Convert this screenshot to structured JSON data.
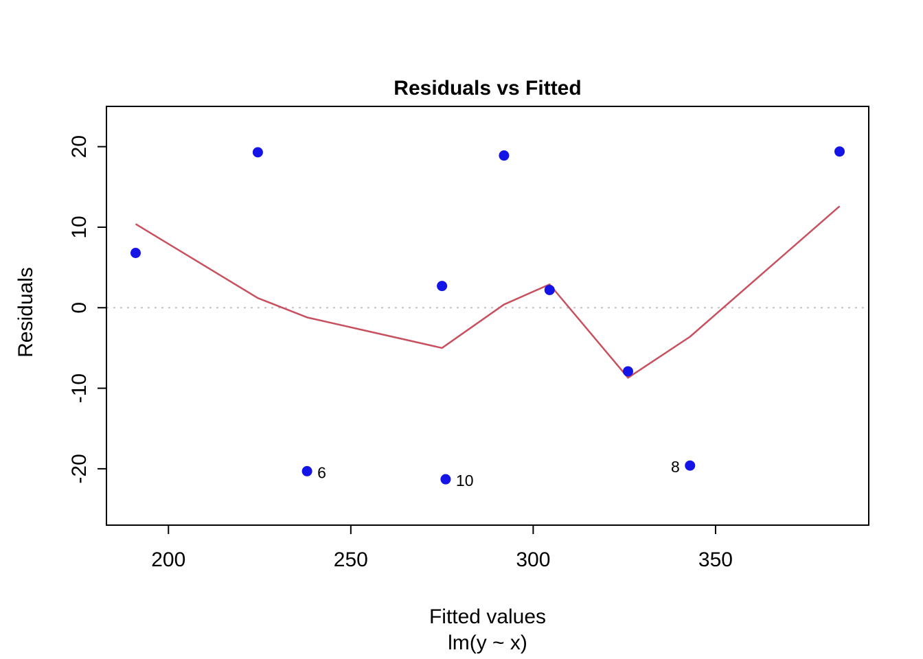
{
  "chart_data": {
    "type": "scatter",
    "title": "Residuals vs Fitted",
    "xlabel": "Fitted values",
    "xlabel2": "lm(y ~ x)",
    "ylabel": "Residuals",
    "x_ticks": [
      200,
      250,
      300,
      350
    ],
    "y_ticks": [
      -20,
      -10,
      0,
      10,
      20
    ],
    "xlim": [
      183,
      392
    ],
    "ylim": [
      -27,
      25
    ],
    "grid": false,
    "legend": "none",
    "zero_line_y": 0,
    "points": [
      {
        "x": 191,
        "y": 6.8
      },
      {
        "x": 224.5,
        "y": 19.3
      },
      {
        "x": 238,
        "y": -20.3,
        "label": "6",
        "label_side": "right"
      },
      {
        "x": 275,
        "y": 2.7
      },
      {
        "x": 276,
        "y": -21.3,
        "label": "10",
        "label_side": "right"
      },
      {
        "x": 292,
        "y": 18.9
      },
      {
        "x": 304.5,
        "y": 2.2
      },
      {
        "x": 326,
        "y": -7.9
      },
      {
        "x": 343,
        "y": -19.6,
        "label": "8",
        "label_side": "left"
      },
      {
        "x": 384,
        "y": 19.4
      }
    ],
    "smoother": [
      {
        "x": 191,
        "y": 10.4
      },
      {
        "x": 224.5,
        "y": 1.2
      },
      {
        "x": 238,
        "y": -1.2
      },
      {
        "x": 275,
        "y": -5.0
      },
      {
        "x": 292,
        "y": 0.4
      },
      {
        "x": 304.5,
        "y": 2.9
      },
      {
        "x": 326,
        "y": -8.7
      },
      {
        "x": 343,
        "y": -3.6
      },
      {
        "x": 384,
        "y": 12.6
      }
    ],
    "colors": {
      "point": "#1414e6",
      "smoother": "#c8505f",
      "zero_line": "#c3c3c3",
      "axis": "#000000"
    }
  }
}
